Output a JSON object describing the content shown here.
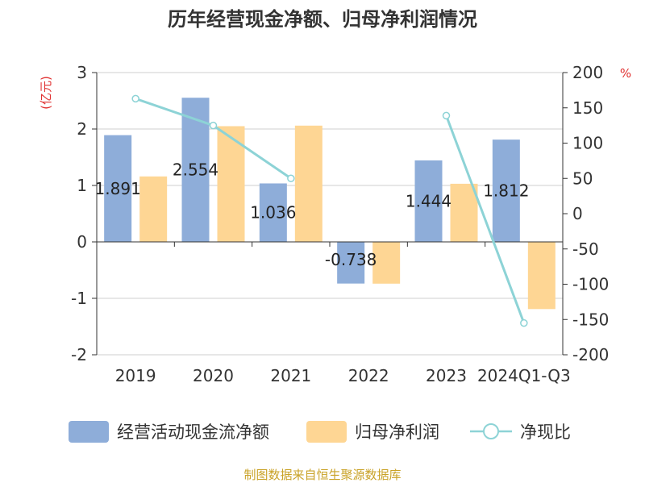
{
  "chart_data": {
    "type": "bar",
    "title": "历年经营现金净额、归母净利润情况",
    "categories": [
      "2019",
      "2020",
      "2021",
      "2022",
      "2023",
      "2024Q1-Q3"
    ],
    "series": [
      {
        "name": "经营活动现金流净额",
        "type": "bar",
        "axis": "left",
        "color": "#8eadd9",
        "values": [
          1.891,
          2.554,
          1.036,
          -0.738,
          1.444,
          1.812
        ],
        "data_labels": [
          "1.891",
          "2.554",
          "1.036",
          "-0.738",
          "1.444",
          "1.812"
        ]
      },
      {
        "name": "归母净利润",
        "type": "bar",
        "axis": "left",
        "color": "#fed694",
        "values": [
          1.16,
          2.05,
          2.06,
          -0.74,
          1.03,
          -1.19
        ]
      },
      {
        "name": "净现比",
        "type": "line",
        "axis": "right",
        "color": "#8dd3d6",
        "values": [
          163,
          125,
          50,
          null,
          139,
          -155
        ]
      }
    ],
    "y_left": {
      "label": "(亿元)",
      "min": -2,
      "max": 3,
      "ticks": [
        "-2",
        "-1",
        "0",
        "1",
        "2",
        "3"
      ],
      "tick_values": [
        -2,
        -1,
        0,
        1,
        2,
        3
      ]
    },
    "y_right": {
      "label": "%",
      "min": -200,
      "max": 200,
      "ticks": [
        "-200",
        "-150",
        "-100",
        "-50",
        "0",
        "50",
        "100",
        "150",
        "200"
      ],
      "tick_values": [
        -200,
        -150,
        -100,
        -50,
        0,
        50,
        100,
        150,
        200
      ]
    },
    "grid": true,
    "legend_position": "bottom",
    "source": "制图数据来自恒生聚源数据库"
  }
}
